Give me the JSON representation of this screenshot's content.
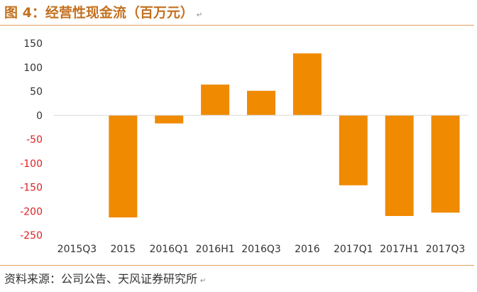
{
  "header": {
    "title": "图 4：经营性现金流（百万元）",
    "return_mark": "↵"
  },
  "footer": {
    "source": "资料来源：公司公告、天风证券研究所",
    "return_mark": "↵"
  },
  "colors": {
    "bar": "#F08A00",
    "positive_tick": "#333333",
    "negative_tick": "#e02020",
    "rule": "#e0a060",
    "title": "#c4701e"
  },
  "chart_data": {
    "type": "bar",
    "title": "经营性现金流（百万元）",
    "categories": [
      "2015Q3",
      "2015",
      "2016Q1",
      "2016H1",
      "2016Q3",
      "2016",
      "2017Q1",
      "2017H1",
      "2017Q3"
    ],
    "values": [
      0,
      -213,
      -17,
      64,
      51,
      129,
      -146,
      -210,
      -203
    ],
    "ylim": [
      -250,
      150
    ],
    "yticks": [
      150,
      100,
      50,
      0,
      -50,
      -100,
      -150,
      -200,
      -250
    ],
    "xlabel": "",
    "ylabel": "",
    "grid": false,
    "legend": "none"
  }
}
